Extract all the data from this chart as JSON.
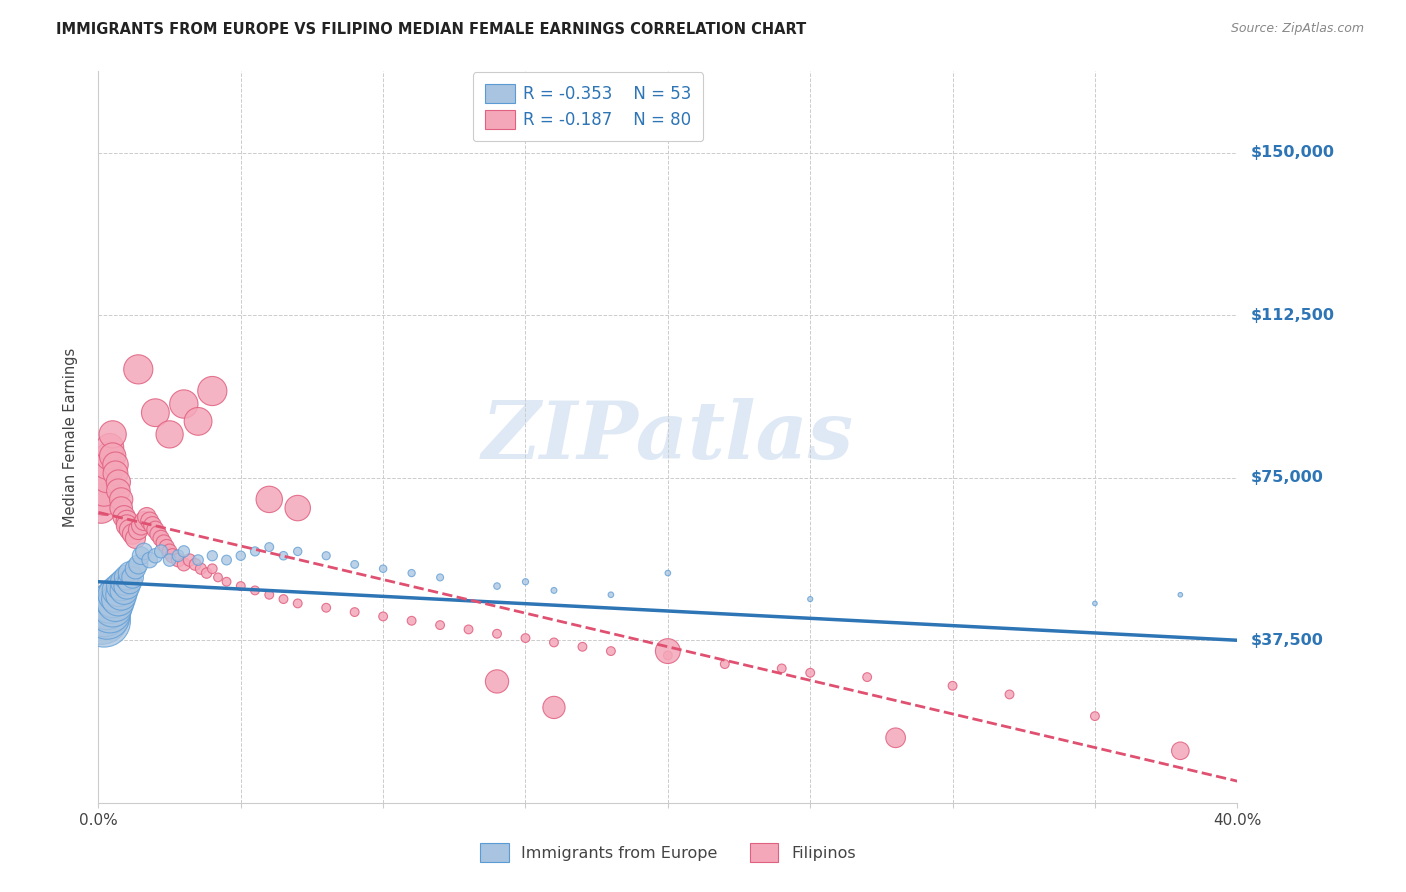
{
  "title": "IMMIGRANTS FROM EUROPE VS FILIPINO MEDIAN FEMALE EARNINGS CORRELATION CHART",
  "source": "Source: ZipAtlas.com",
  "ylabel": "Median Female Earnings",
  "xlim": [
    0.0,
    0.4
  ],
  "ylim": [
    0,
    168750
  ],
  "ytick_positions": [
    37500,
    75000,
    112500,
    150000
  ],
  "ytick_labels": [
    "$37,500",
    "$75,000",
    "$112,500",
    "$150,000"
  ],
  "blue_color": "#A8C4E0",
  "blue_edge_color": "#5B9BD5",
  "pink_color": "#F4A7B9",
  "pink_edge_color": "#E06080",
  "blue_line_color": "#2E75B6",
  "pink_line_color": "#E05070",
  "right_tick_color": "#2E75B6",
  "legend_label_blue": "Immigrants from Europe",
  "legend_label_pink": "Filipinos",
  "watermark": "ZIPatlas",
  "blue_scatter_x": [
    0.001,
    0.002,
    0.002,
    0.003,
    0.003,
    0.004,
    0.004,
    0.005,
    0.005,
    0.006,
    0.006,
    0.007,
    0.007,
    0.008,
    0.008,
    0.009,
    0.009,
    0.01,
    0.01,
    0.011,
    0.011,
    0.012,
    0.013,
    0.014,
    0.015,
    0.016,
    0.018,
    0.02,
    0.022,
    0.025,
    0.028,
    0.03,
    0.035,
    0.04,
    0.045,
    0.05,
    0.055,
    0.06,
    0.065,
    0.07,
    0.08,
    0.09,
    0.1,
    0.11,
    0.12,
    0.14,
    0.15,
    0.16,
    0.18,
    0.2,
    0.25,
    0.35,
    0.38
  ],
  "blue_scatter_y": [
    43000,
    42000,
    44000,
    43000,
    45000,
    44000,
    46000,
    45000,
    47000,
    46000,
    48000,
    47000,
    49000,
    48000,
    50000,
    49000,
    51000,
    50000,
    52000,
    51000,
    53000,
    52000,
    54000,
    55000,
    57000,
    58000,
    56000,
    57000,
    58000,
    56000,
    57000,
    58000,
    56000,
    57000,
    56000,
    57000,
    58000,
    59000,
    57000,
    58000,
    57000,
    55000,
    54000,
    53000,
    52000,
    50000,
    51000,
    49000,
    48000,
    53000,
    47000,
    46000,
    48000
  ],
  "blue_scatter_sizes": [
    1800,
    1600,
    1400,
    1200,
    1100,
    1000,
    900,
    850,
    800,
    750,
    700,
    650,
    600,
    550,
    500,
    450,
    420,
    390,
    360,
    330,
    300,
    270,
    240,
    210,
    180,
    160,
    140,
    120,
    100,
    90,
    80,
    75,
    65,
    60,
    55,
    50,
    48,
    45,
    42,
    40,
    38,
    35,
    32,
    30,
    28,
    25,
    22,
    20,
    18,
    18,
    15,
    12,
    12
  ],
  "pink_scatter_x": [
    0.001,
    0.002,
    0.002,
    0.003,
    0.003,
    0.004,
    0.004,
    0.005,
    0.005,
    0.006,
    0.006,
    0.007,
    0.007,
    0.008,
    0.008,
    0.009,
    0.01,
    0.01,
    0.011,
    0.012,
    0.013,
    0.014,
    0.015,
    0.016,
    0.017,
    0.018,
    0.019,
    0.02,
    0.021,
    0.022,
    0.023,
    0.024,
    0.025,
    0.026,
    0.028,
    0.03,
    0.032,
    0.034,
    0.036,
    0.038,
    0.04,
    0.042,
    0.045,
    0.05,
    0.055,
    0.06,
    0.065,
    0.07,
    0.08,
    0.09,
    0.1,
    0.11,
    0.12,
    0.13,
    0.14,
    0.15,
    0.16,
    0.17,
    0.18,
    0.2,
    0.22,
    0.24,
    0.25,
    0.27,
    0.3,
    0.32,
    0.35,
    0.014,
    0.02,
    0.025,
    0.03,
    0.035,
    0.04,
    0.06,
    0.07,
    0.14,
    0.16,
    0.2,
    0.28,
    0.38
  ],
  "pink_scatter_y": [
    68000,
    70000,
    72000,
    75000,
    78000,
    80000,
    82000,
    85000,
    80000,
    78000,
    76000,
    74000,
    72000,
    70000,
    68000,
    66000,
    65000,
    64000,
    63000,
    62000,
    61000,
    63000,
    64000,
    65000,
    66000,
    65000,
    64000,
    63000,
    62000,
    61000,
    60000,
    59000,
    58000,
    57000,
    56000,
    55000,
    56000,
    55000,
    54000,
    53000,
    54000,
    52000,
    51000,
    50000,
    49000,
    48000,
    47000,
    46000,
    45000,
    44000,
    43000,
    42000,
    41000,
    40000,
    39000,
    38000,
    37000,
    36000,
    35000,
    34000,
    32000,
    31000,
    30000,
    29000,
    27000,
    25000,
    20000,
    100000,
    90000,
    85000,
    92000,
    88000,
    95000,
    70000,
    68000,
    28000,
    22000,
    35000,
    15000,
    12000
  ],
  "pink_scatter_sizes": [
    60,
    65,
    62,
    58,
    55,
    52,
    50,
    48,
    45,
    42,
    40,
    38,
    36,
    35,
    33,
    32,
    30,
    29,
    28,
    27,
    26,
    25,
    24,
    23,
    22,
    21,
    20,
    19,
    18,
    17,
    16,
    15,
    14,
    13,
    12,
    11,
    10,
    9,
    8,
    7,
    6,
    5,
    5,
    5,
    5,
    5,
    5,
    5,
    5,
    5,
    5,
    5,
    5,
    5,
    5,
    5,
    5,
    5,
    5,
    5,
    5,
    5,
    5,
    5,
    5,
    5,
    5,
    55,
    50,
    48,
    52,
    50,
    55,
    45,
    42,
    35,
    32,
    40,
    25,
    20
  ],
  "blue_trendline_x0": 0.0,
  "blue_trendline_y0": 51000,
  "blue_trendline_x1": 0.4,
  "blue_trendline_y1": 37500,
  "pink_trendline_x0": 0.0,
  "pink_trendline_y0": 67000,
  "pink_trendline_x1": 0.4,
  "pink_trendline_y1": 5000
}
